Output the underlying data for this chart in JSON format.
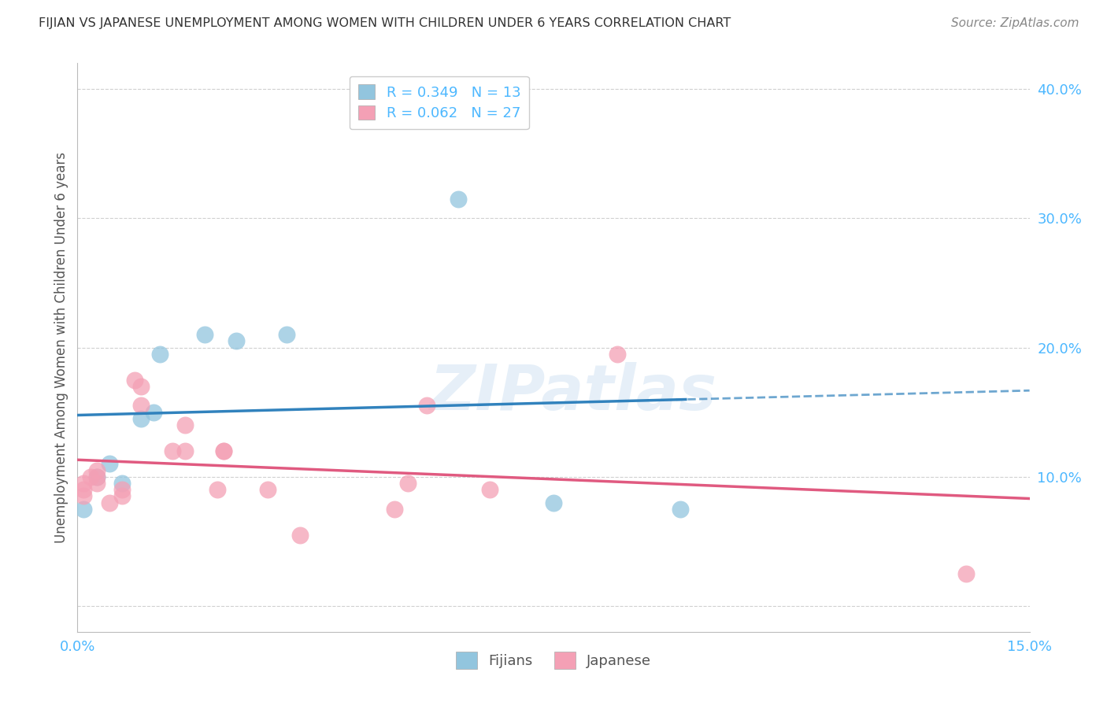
{
  "title": "FIJIAN VS JAPANESE UNEMPLOYMENT AMONG WOMEN WITH CHILDREN UNDER 6 YEARS CORRELATION CHART",
  "source": "Source: ZipAtlas.com",
  "ylabel": "Unemployment Among Women with Children Under 6 years",
  "xlim": [
    0.0,
    0.15
  ],
  "ylim": [
    -0.02,
    0.42
  ],
  "xticks": [
    0.0,
    0.025,
    0.05,
    0.075,
    0.1,
    0.125,
    0.15
  ],
  "xtick_labels": [
    "0.0%",
    "",
    "",
    "",
    "",
    "",
    "15.0%"
  ],
  "yticks_right": [
    0.0,
    0.1,
    0.2,
    0.3,
    0.4
  ],
  "ytick_labels_right": [
    "",
    "10.0%",
    "20.0%",
    "30.0%",
    "40.0%"
  ],
  "fijian_R": 0.349,
  "fijian_N": 13,
  "japanese_R": 0.062,
  "japanese_N": 27,
  "fijian_color": "#92c5de",
  "japanese_color": "#f4a0b5",
  "fijian_line_color": "#3182bd",
  "japanese_line_color": "#e05a80",
  "fijian_x": [
    0.001,
    0.003,
    0.005,
    0.007,
    0.01,
    0.012,
    0.013,
    0.02,
    0.025,
    0.033,
    0.06,
    0.075,
    0.095
  ],
  "fijian_y": [
    0.075,
    0.1,
    0.11,
    0.095,
    0.145,
    0.15,
    0.195,
    0.21,
    0.205,
    0.21,
    0.315,
    0.08,
    0.075
  ],
  "japanese_x": [
    0.001,
    0.001,
    0.001,
    0.002,
    0.003,
    0.003,
    0.003,
    0.005,
    0.007,
    0.007,
    0.009,
    0.01,
    0.01,
    0.015,
    0.017,
    0.017,
    0.022,
    0.023,
    0.023,
    0.03,
    0.035,
    0.05,
    0.052,
    0.055,
    0.065,
    0.085,
    0.14
  ],
  "japanese_y": [
    0.085,
    0.09,
    0.095,
    0.1,
    0.095,
    0.1,
    0.105,
    0.08,
    0.085,
    0.09,
    0.175,
    0.17,
    0.155,
    0.12,
    0.12,
    0.14,
    0.09,
    0.12,
    0.12,
    0.09,
    0.055,
    0.075,
    0.095,
    0.155,
    0.09,
    0.195,
    0.025
  ],
  "watermark": "ZIPatlas",
  "background_color": "#ffffff",
  "grid_color": "#d0d0d0",
  "title_color": "#333333",
  "source_color": "#888888",
  "axis_label_color": "#555555",
  "tick_color": "#4db8ff"
}
